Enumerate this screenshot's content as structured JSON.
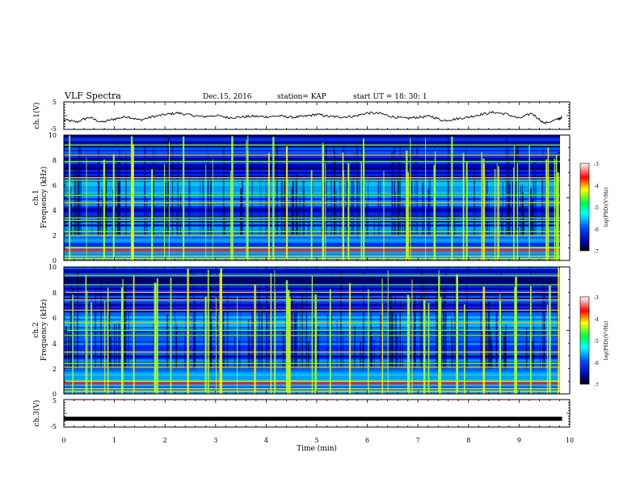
{
  "header": {
    "title": "VLF Spectra",
    "date": "Dec.15, 2016",
    "station": "station= KAP",
    "start": "start  UT =   18: 30: 1"
  },
  "chart_data": [
    {
      "type": "line",
      "panel": "ch1-waveform",
      "ylabel": "ch.1(V)",
      "ylim": [
        -5,
        5
      ],
      "yticks": [
        "5",
        "-5"
      ],
      "xlim": [
        0,
        10
      ],
      "x": [
        0,
        0.25,
        0.5,
        0.75,
        1.0,
        1.25,
        1.5,
        1.75,
        2.0,
        2.25,
        2.5,
        2.75,
        3.0,
        3.25,
        3.5,
        3.75,
        4.0,
        4.25,
        4.5,
        4.75,
        5.0,
        5.25,
        5.5,
        5.75,
        6.0,
        6.25,
        6.5,
        6.75,
        7.0,
        7.25,
        7.5,
        7.75,
        8.0,
        8.25,
        8.5,
        8.75,
        9.0,
        9.25,
        9.5,
        9.75,
        9.85
      ],
      "y": [
        -1.5,
        -2.3,
        -0.6,
        -2.4,
        -1.2,
        -0.3,
        -1.6,
        -0.4,
        0.4,
        1.0,
        0.2,
        -0.4,
        0.1,
        -0.7,
        -0.5,
        -0.2,
        -0.4,
        -0.1,
        -0.6,
        -0.3,
        0.5,
        -0.3,
        -0.5,
        -0.2,
        1.0,
        0.8,
        -0.4,
        -1.0,
        -0.6,
        -0.2,
        -1.8,
        -1.2,
        -0.5,
        0.5,
        1.2,
        0.6,
        -1.0,
        0.9,
        -2.8,
        -1.4,
        -0.6
      ]
    },
    {
      "type": "heatmap",
      "panel": "ch1-spectrogram",
      "ylabel": "ch.1",
      "ylabel2": "Frequency  (kHz)",
      "ylim": [
        0,
        10
      ],
      "yticks": [
        "0",
        "2",
        "4",
        "6",
        "8",
        "10"
      ],
      "xlim": [
        0,
        10
      ],
      "colorbar": {
        "label": "log(PSD)(V²/Hz)",
        "range": [
          -7,
          -3
        ],
        "ticks": [
          "-3",
          "-4",
          "-5",
          "-6",
          "-7"
        ]
      },
      "lines_khz": [
        0.15,
        0.35,
        0.8,
        1.0,
        2.0,
        2.3,
        3.2,
        3.4,
        4.6,
        5.2,
        6.4,
        6.6,
        7.9,
        8.4,
        9.2
      ],
      "spike_times_min": [
        0.05,
        0.45,
        0.75,
        0.98,
        1.33,
        1.72,
        2.04,
        2.41,
        2.75,
        3.0,
        3.35,
        3.62,
        4.08,
        4.35,
        4.85,
        5.12,
        5.55,
        5.92,
        6.3,
        6.8,
        7.1,
        7.35,
        7.62,
        7.9,
        8.25,
        8.55,
        8.9,
        9.2,
        9.5,
        9.7
      ]
    },
    {
      "type": "heatmap",
      "panel": "ch2-spectrogram",
      "ylabel": "ch.2",
      "ylabel2": "Frequency  (kHz)",
      "ylim": [
        0,
        10
      ],
      "yticks": [
        "0",
        "2",
        "4",
        "6",
        "8",
        "10"
      ],
      "xlim": [
        0,
        10
      ],
      "colorbar": {
        "label": "log(PSD)(V²/Hz)",
        "range": [
          -7,
          -3
        ],
        "ticks": [
          "-3",
          "-4",
          "-5",
          "-6",
          "-7"
        ]
      },
      "lines_khz": [
        0.2,
        0.4,
        1.0,
        2.1,
        2.4,
        3.3,
        4.6,
        5.0,
        5.6,
        6.6,
        7.4,
        8.0,
        8.6,
        9.3
      ],
      "spike_times_min": [
        0.12,
        0.48,
        0.82,
        1.1,
        1.35,
        1.8,
        2.1,
        2.45,
        2.8,
        3.05,
        3.4,
        3.7,
        4.1,
        4.4,
        4.9,
        5.2,
        5.6,
        5.95,
        6.35,
        6.85,
        7.15,
        7.4,
        7.7,
        7.95,
        8.3,
        8.6,
        8.95,
        9.25,
        9.55,
        9.75
      ]
    },
    {
      "type": "line",
      "panel": "ch3-waveform",
      "ylabel": "ch.3(V)",
      "ylim": [
        -5,
        5
      ],
      "yticks": [
        "5",
        "-5"
      ],
      "xlim": [
        0,
        10
      ],
      "x": [
        0,
        9.85
      ],
      "y": [
        -2.0,
        -2.0
      ]
    }
  ],
  "xaxis": {
    "label": "Time  (min)",
    "ticks": [
      "0",
      "1",
      "2",
      "3",
      "4",
      "5",
      "6",
      "7",
      "8",
      "9",
      "10"
    ]
  }
}
